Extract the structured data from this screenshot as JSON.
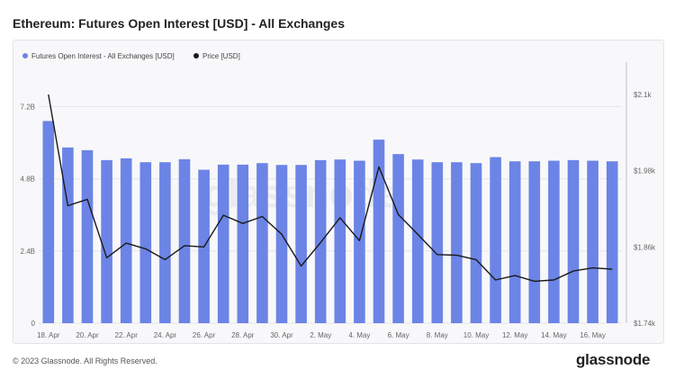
{
  "title": "Ethereum: Futures Open Interest [USD] - All Exchanges",
  "footer": {
    "copyright": "© 2023 Glassnode. All Rights Reserved.",
    "brand": "glassnode"
  },
  "watermark": "glassnode",
  "colors": {
    "bar": "#6c84e6",
    "line": "#1a1a1a",
    "grid": "#e6e6ea",
    "axis": "#666666"
  },
  "chart_data": {
    "type": "bar",
    "title": "Ethereum: Futures Open Interest [USD] - All Exchanges",
    "x_tick_labels": [
      "18. Apr",
      "20. Apr",
      "22. Apr",
      "24. Apr",
      "26. Apr",
      "28. Apr",
      "30. Apr",
      "2. May",
      "4. May",
      "6. May",
      "8. May",
      "10. May",
      "12. May",
      "14. May",
      "16. May"
    ],
    "y_left": {
      "ticks": [
        0,
        2.4,
        4.8,
        7.2
      ],
      "tick_labels": [
        "0",
        "2.4B",
        "4.8B",
        "7.2B"
      ],
      "range": [
        0,
        7.6
      ],
      "unit": "B"
    },
    "y_right": {
      "ticks": [
        1740,
        1860,
        1980,
        2100
      ],
      "tick_labels": [
        "$1.74k",
        "$1.86k",
        "$1.98k",
        "$2.1k"
      ],
      "range": [
        1740,
        2100
      ]
    },
    "legend": {
      "position": "top-left"
    },
    "grid": true,
    "series": [
      {
        "name": "Futures Open Interest - All Exchanges [USD]",
        "type": "bar",
        "axis": "left",
        "values": [
          6.72,
          5.84,
          5.75,
          5.42,
          5.48,
          5.35,
          5.35,
          5.45,
          5.1,
          5.27,
          5.27,
          5.32,
          5.26,
          5.26,
          5.42,
          5.44,
          5.4,
          6.1,
          5.62,
          5.44,
          5.35,
          5.35,
          5.32,
          5.52,
          5.38,
          5.38,
          5.4,
          5.42,
          5.4,
          5.38
        ]
      },
      {
        "name": "Price [USD]",
        "type": "line",
        "axis": "right",
        "values": [
          2100,
          1925,
          1935,
          1843,
          1866,
          1857,
          1840,
          1862,
          1860,
          1910,
          1897,
          1908,
          1880,
          1830,
          1867,
          1906,
          1870,
          1986,
          1911,
          1880,
          1848,
          1847,
          1840,
          1808,
          1815,
          1806,
          1808,
          1822,
          1827,
          1825
        ]
      }
    ]
  }
}
